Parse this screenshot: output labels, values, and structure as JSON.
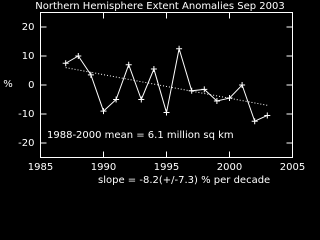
{
  "chart_data": {
    "type": "line",
    "title": "Northern Hemisphere Extent Anomalies Sep 2003",
    "y_label": "%",
    "x": [
      1987,
      1988,
      1989,
      1990,
      1991,
      1992,
      1993,
      1994,
      1995,
      1996,
      1997,
      1998,
      1999,
      2000,
      2001,
      2002,
      2003
    ],
    "values": [
      7.5,
      10,
      3.5,
      -9,
      -5,
      7,
      -5,
      5.5,
      -9.5,
      12.5,
      -2,
      -1.5,
      -5.5,
      -4.5,
      0,
      -12.5,
      -10.5
    ],
    "color": "#ffffff",
    "trend": {
      "x": [
        1987,
        2003
      ],
      "values": [
        6,
        -7
      ]
    },
    "xlim": [
      1985,
      2005
    ],
    "xticks": [
      1985,
      1990,
      1995,
      2000,
      2005
    ],
    "ylim": [
      -25,
      25
    ],
    "yticks": [
      20,
      10,
      0,
      -10,
      -20
    ],
    "annotations": [
      "1988-2000 mean =  6.1 million sq km",
      "slope = -8.2(+/-7.3) % per decade"
    ]
  }
}
